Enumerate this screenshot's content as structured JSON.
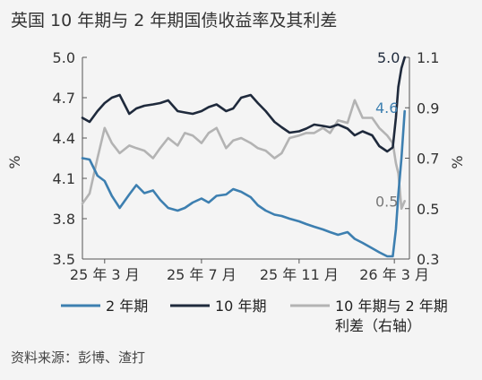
{
  "title": "英国 10 年期与 2 年期国债收益率及其利差",
  "source": "资料来源：彭博、渣打",
  "colors": {
    "series_2y": "#3d7fb0",
    "series_10y": "#1f2a3c",
    "series_spread": "#b3b3b3",
    "axis": "#555555",
    "background": "#f4f4f4"
  },
  "chart_data": {
    "type": "line",
    "title": "英国 10 年期与 2 年期国债收益率及其利差",
    "x_ticks": [
      "25 年 3 月",
      "25 年 7 月",
      "25 年 11 月",
      "26 年 3 月"
    ],
    "x_tick_dates": [
      "2025-03-01",
      "2025-07-01",
      "2025-11-01",
      "2026-03-01"
    ],
    "x_range": [
      "2025-02-01",
      "2026-03-20"
    ],
    "left_axis": {
      "label": "%",
      "min": 3.5,
      "max": 5.0,
      "ticks": [
        "3.5",
        "3.8",
        "4.1",
        "4.4",
        "4.7",
        "5.0"
      ]
    },
    "right_axis": {
      "label": "%",
      "min": 0.3,
      "max": 1.1,
      "ticks": [
        "0.3",
        "0.5",
        "0.7",
        "0.9",
        "1.1"
      ]
    },
    "legend": [
      "2 年期",
      "10 年期",
      "10 年期与 2 年期利差（右轴）"
    ],
    "legend_position": "bottom",
    "series": [
      {
        "name": "2 年期",
        "axis": "left",
        "end_label": "4.6",
        "points": [
          [
            "2025-02-01",
            4.25
          ],
          [
            "2025-02-10",
            4.24
          ],
          [
            "2025-02-20",
            4.12
          ],
          [
            "2025-03-01",
            4.08
          ],
          [
            "2025-03-10",
            3.97
          ],
          [
            "2025-03-20",
            3.88
          ],
          [
            "2025-04-01",
            3.98
          ],
          [
            "2025-04-10",
            4.05
          ],
          [
            "2025-04-20",
            3.99
          ],
          [
            "2025-05-01",
            4.01
          ],
          [
            "2025-05-10",
            3.94
          ],
          [
            "2025-05-20",
            3.88
          ],
          [
            "2025-06-01",
            3.86
          ],
          [
            "2025-06-10",
            3.88
          ],
          [
            "2025-06-20",
            3.92
          ],
          [
            "2025-07-01",
            3.95
          ],
          [
            "2025-07-10",
            3.92
          ],
          [
            "2025-07-20",
            3.97
          ],
          [
            "2025-08-01",
            3.98
          ],
          [
            "2025-08-10",
            4.02
          ],
          [
            "2025-08-20",
            4.0
          ],
          [
            "2025-09-01",
            3.96
          ],
          [
            "2025-09-10",
            3.9
          ],
          [
            "2025-09-20",
            3.86
          ],
          [
            "2025-10-01",
            3.83
          ],
          [
            "2025-10-10",
            3.82
          ],
          [
            "2025-10-20",
            3.8
          ],
          [
            "2025-11-01",
            3.78
          ],
          [
            "2025-11-10",
            3.76
          ],
          [
            "2025-11-20",
            3.74
          ],
          [
            "2025-12-01",
            3.72
          ],
          [
            "2025-12-10",
            3.7
          ],
          [
            "2025-12-20",
            3.68
          ],
          [
            "2026-01-01",
            3.7
          ],
          [
            "2026-01-10",
            3.65
          ],
          [
            "2026-01-20",
            3.62
          ],
          [
            "2026-02-01",
            3.58
          ],
          [
            "2026-02-10",
            3.55
          ],
          [
            "2026-02-20",
            3.52
          ],
          [
            "2026-02-27",
            3.52
          ],
          [
            "2026-03-03",
            3.72
          ],
          [
            "2026-03-06",
            3.98
          ],
          [
            "2026-03-10",
            4.25
          ],
          [
            "2026-03-14",
            4.6
          ]
        ]
      },
      {
        "name": "10 年期",
        "axis": "left",
        "end_label": "5.0",
        "points": [
          [
            "2025-02-01",
            4.55
          ],
          [
            "2025-02-10",
            4.52
          ],
          [
            "2025-02-20",
            4.6
          ],
          [
            "2025-03-01",
            4.66
          ],
          [
            "2025-03-10",
            4.7
          ],
          [
            "2025-03-20",
            4.72
          ],
          [
            "2025-04-01",
            4.58
          ],
          [
            "2025-04-10",
            4.62
          ],
          [
            "2025-04-20",
            4.64
          ],
          [
            "2025-05-01",
            4.65
          ],
          [
            "2025-05-10",
            4.66
          ],
          [
            "2025-05-20",
            4.68
          ],
          [
            "2025-06-01",
            4.6
          ],
          [
            "2025-06-10",
            4.59
          ],
          [
            "2025-06-20",
            4.58
          ],
          [
            "2025-07-01",
            4.6
          ],
          [
            "2025-07-10",
            4.63
          ],
          [
            "2025-07-20",
            4.65
          ],
          [
            "2025-08-01",
            4.6
          ],
          [
            "2025-08-10",
            4.62
          ],
          [
            "2025-08-20",
            4.7
          ],
          [
            "2025-09-01",
            4.72
          ],
          [
            "2025-09-10",
            4.66
          ],
          [
            "2025-09-20",
            4.6
          ],
          [
            "2025-10-01",
            4.52
          ],
          [
            "2025-10-10",
            4.48
          ],
          [
            "2025-10-20",
            4.44
          ],
          [
            "2025-11-01",
            4.45
          ],
          [
            "2025-11-10",
            4.47
          ],
          [
            "2025-11-20",
            4.5
          ],
          [
            "2025-12-01",
            4.49
          ],
          [
            "2025-12-10",
            4.48
          ],
          [
            "2025-12-20",
            4.5
          ],
          [
            "2026-01-01",
            4.47
          ],
          [
            "2026-01-10",
            4.42
          ],
          [
            "2026-01-20",
            4.45
          ],
          [
            "2026-02-01",
            4.42
          ],
          [
            "2026-02-10",
            4.34
          ],
          [
            "2026-02-20",
            4.3
          ],
          [
            "2026-02-27",
            4.33
          ],
          [
            "2026-03-03",
            4.55
          ],
          [
            "2026-03-06",
            4.78
          ],
          [
            "2026-03-10",
            4.92
          ],
          [
            "2026-03-14",
            5.0
          ]
        ]
      },
      {
        "name": "10 年期与 2 年期利差（右轴）",
        "axis": "right",
        "end_label": "0.5",
        "points": [
          [
            "2025-02-01",
            0.52
          ],
          [
            "2025-02-10",
            0.56
          ],
          [
            "2025-02-20",
            0.7
          ],
          [
            "2025-03-01",
            0.82
          ],
          [
            "2025-03-10",
            0.76
          ],
          [
            "2025-03-20",
            0.72
          ],
          [
            "2025-04-01",
            0.75
          ],
          [
            "2025-04-10",
            0.74
          ],
          [
            "2025-04-20",
            0.73
          ],
          [
            "2025-05-01",
            0.7
          ],
          [
            "2025-05-10",
            0.74
          ],
          [
            "2025-05-20",
            0.78
          ],
          [
            "2025-06-01",
            0.75
          ],
          [
            "2025-06-10",
            0.8
          ],
          [
            "2025-06-20",
            0.79
          ],
          [
            "2025-07-01",
            0.76
          ],
          [
            "2025-07-10",
            0.8
          ],
          [
            "2025-07-20",
            0.82
          ],
          [
            "2025-08-01",
            0.74
          ],
          [
            "2025-08-10",
            0.77
          ],
          [
            "2025-08-20",
            0.78
          ],
          [
            "2025-09-01",
            0.76
          ],
          [
            "2025-09-10",
            0.74
          ],
          [
            "2025-09-20",
            0.73
          ],
          [
            "2025-10-01",
            0.7
          ],
          [
            "2025-10-10",
            0.72
          ],
          [
            "2025-10-20",
            0.78
          ],
          [
            "2025-11-01",
            0.79
          ],
          [
            "2025-11-10",
            0.8
          ],
          [
            "2025-11-20",
            0.8
          ],
          [
            "2025-12-01",
            0.82
          ],
          [
            "2025-12-10",
            0.8
          ],
          [
            "2025-12-20",
            0.85
          ],
          [
            "2026-01-01",
            0.84
          ],
          [
            "2026-01-10",
            0.93
          ],
          [
            "2026-01-20",
            0.86
          ],
          [
            "2026-02-01",
            0.86
          ],
          [
            "2026-02-10",
            0.82
          ],
          [
            "2026-02-20",
            0.79
          ],
          [
            "2026-02-27",
            0.76
          ],
          [
            "2026-03-03",
            0.68
          ],
          [
            "2026-03-06",
            0.64
          ],
          [
            "2026-03-10",
            0.5
          ],
          [
            "2026-03-14",
            0.53
          ]
        ]
      }
    ]
  }
}
